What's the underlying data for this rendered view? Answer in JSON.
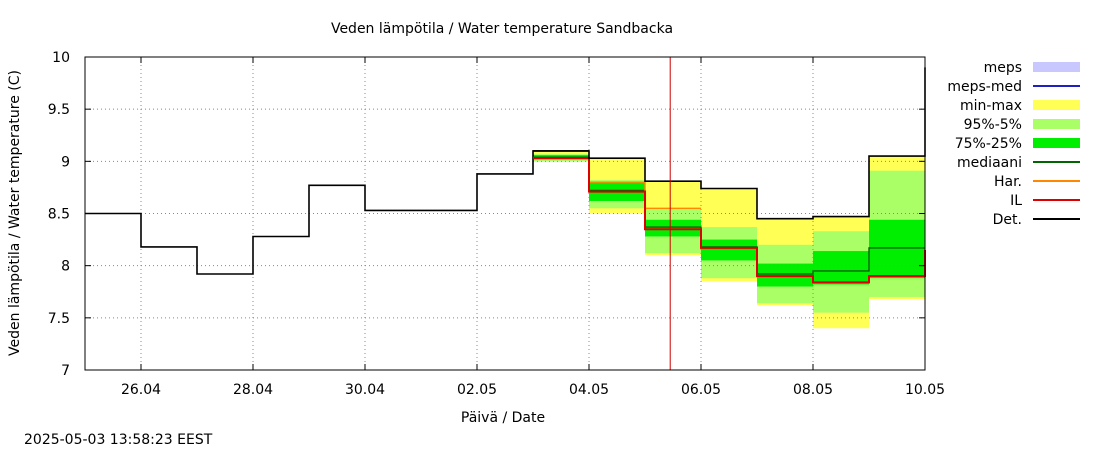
{
  "chart_data": {
    "type": "line",
    "title": "Veden lämpötila / Water temperature Sandbacka",
    "xlabel": "Päivä / Date",
    "ylabel": "Veden lämpötila / Water temperature (C)",
    "timestamp": "2025-05-03 13:58:23 EEST",
    "x_range": [
      0,
      15
    ],
    "ylim": [
      7,
      10
    ],
    "grid": true,
    "legend_position": "right",
    "now_x": 10.45,
    "now_color": "#cc0000",
    "x_ticks": [
      {
        "x": 1,
        "label": "26.04"
      },
      {
        "x": 3,
        "label": "28.04"
      },
      {
        "x": 5,
        "label": "30.04"
      },
      {
        "x": 7,
        "label": "02.05"
      },
      {
        "x": 9,
        "label": "04.05"
      },
      {
        "x": 11,
        "label": "06.05"
      },
      {
        "x": 13,
        "label": "08.05"
      },
      {
        "x": 15,
        "label": "10.05"
      }
    ],
    "y_ticks": [
      {
        "y": 10,
        "label": "10"
      },
      {
        "y": 9.5,
        "label": "9.5"
      },
      {
        "y": 9,
        "label": "9"
      },
      {
        "y": 8.5,
        "label": "8.5"
      },
      {
        "y": 8,
        "label": "8"
      },
      {
        "y": 7.5,
        "label": "7.5"
      },
      {
        "y": 7,
        "label": "7"
      }
    ],
    "legend": [
      {
        "label": "meps",
        "kind": "box",
        "color": "#c8c8ff"
      },
      {
        "label": "meps-med",
        "kind": "line",
        "color": "#2020c0"
      },
      {
        "label": "min-max",
        "kind": "box",
        "color": "#ffff55"
      },
      {
        "label": "95%-5%",
        "kind": "box",
        "color": "#aaff66"
      },
      {
        "label": "75%-25%",
        "kind": "box",
        "color": "#00ee00"
      },
      {
        "label": "mediaani",
        "kind": "line",
        "color": "#006600"
      },
      {
        "label": "Har.",
        "kind": "line",
        "color": "#ff8800"
      },
      {
        "label": "IL",
        "kind": "line",
        "color": "#dd0000"
      },
      {
        "label": "Det.",
        "kind": "line",
        "color": "#000000"
      }
    ],
    "observed": {
      "color": "#000000",
      "points": [
        [
          0,
          8.5
        ],
        [
          1,
          8.5
        ],
        [
          1,
          8.18
        ],
        [
          2,
          8.18
        ],
        [
          2,
          7.92
        ],
        [
          3,
          7.92
        ],
        [
          3,
          8.28
        ],
        [
          4,
          8.28
        ],
        [
          4,
          8.77
        ],
        [
          5,
          8.77
        ],
        [
          5,
          8.53
        ],
        [
          7,
          8.53
        ],
        [
          7,
          8.88
        ],
        [
          8,
          8.88
        ],
        [
          8,
          9.1
        ],
        [
          9,
          9.1
        ]
      ]
    },
    "bands": [
      {
        "name": "min-max",
        "color": "#ffff55",
        "steps": [
          [
            8,
            9.0,
            9.1
          ],
          [
            9,
            8.5,
            9.03
          ],
          [
            10,
            8.1,
            8.81
          ],
          [
            11,
            7.85,
            8.74
          ],
          [
            12,
            7.62,
            8.45
          ],
          [
            13,
            7.4,
            8.47
          ],
          [
            14,
            7.68,
            9.05
          ],
          [
            15,
            7.68,
            9.05
          ]
        ]
      },
      {
        "name": "95%-5%",
        "color": "#aaff66",
        "steps": [
          [
            8,
            9.0,
            9.07
          ],
          [
            9,
            8.55,
            8.82
          ],
          [
            10,
            8.12,
            8.55
          ],
          [
            11,
            7.88,
            8.37
          ],
          [
            12,
            7.64,
            8.2
          ],
          [
            13,
            7.55,
            8.33
          ],
          [
            14,
            7.7,
            8.91
          ],
          [
            15,
            7.7,
            8.91
          ]
        ]
      },
      {
        "name": "75%-25%",
        "color": "#00ee00",
        "steps": [
          [
            8,
            9.02,
            9.06
          ],
          [
            9,
            8.62,
            8.8
          ],
          [
            10,
            8.28,
            8.44
          ],
          [
            11,
            8.05,
            8.25
          ],
          [
            12,
            7.8,
            8.02
          ],
          [
            13,
            7.82,
            8.14
          ],
          [
            14,
            7.88,
            8.44
          ],
          [
            15,
            7.88,
            8.44
          ]
        ]
      }
    ],
    "series": [
      {
        "name": "mediaani",
        "color": "#006600",
        "points": [
          [
            8,
            9.04
          ],
          [
            9,
            9.04
          ],
          [
            9,
            8.72
          ],
          [
            10,
            8.72
          ],
          [
            10,
            8.37
          ],
          [
            11,
            8.37
          ],
          [
            11,
            8.18
          ],
          [
            12,
            8.18
          ],
          [
            12,
            7.92
          ],
          [
            13,
            7.92
          ],
          [
            13,
            7.95
          ],
          [
            14,
            7.95
          ],
          [
            14,
            8.17
          ],
          [
            15,
            8.17
          ]
        ]
      },
      {
        "name": "Har.",
        "color": "#ff8800",
        "points": [
          [
            9,
            8.8
          ],
          [
            10,
            8.8
          ],
          [
            10,
            8.55
          ],
          [
            11,
            8.55
          ]
        ]
      },
      {
        "name": "IL",
        "color": "#dd0000",
        "points": [
          [
            8,
            9.03
          ],
          [
            9,
            9.03
          ],
          [
            9,
            8.71
          ],
          [
            10,
            8.71
          ],
          [
            10,
            8.35
          ],
          [
            11,
            8.35
          ],
          [
            11,
            8.17
          ],
          [
            12,
            8.17
          ],
          [
            12,
            7.9
          ],
          [
            13,
            7.9
          ],
          [
            13,
            7.84
          ],
          [
            14,
            7.84
          ],
          [
            14,
            7.9
          ],
          [
            15,
            7.9
          ],
          [
            15,
            8.15
          ]
        ]
      },
      {
        "name": "Det.",
        "color": "#000000",
        "points": [
          [
            8,
            9.1
          ],
          [
            9,
            9.1
          ],
          [
            9,
            9.03
          ],
          [
            10,
            9.03
          ],
          [
            10,
            8.81
          ],
          [
            11,
            8.81
          ],
          [
            11,
            8.74
          ],
          [
            12,
            8.74
          ],
          [
            12,
            8.45
          ],
          [
            13,
            8.45
          ],
          [
            13,
            8.47
          ],
          [
            14,
            8.47
          ],
          [
            14,
            9.05
          ],
          [
            15,
            9.05
          ],
          [
            15,
            9.9
          ]
        ]
      }
    ]
  }
}
